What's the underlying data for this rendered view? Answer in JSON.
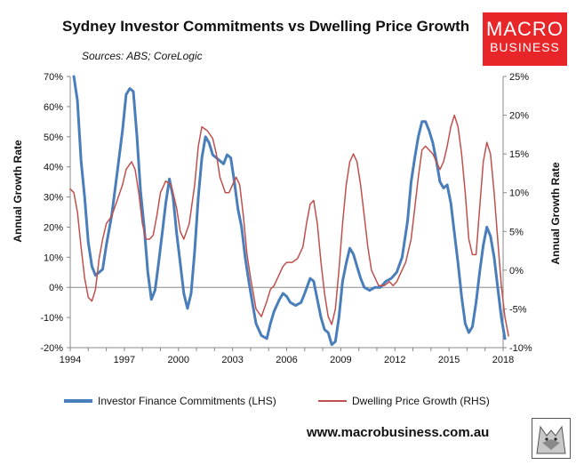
{
  "title": "Sydney Investor Commitments vs Dwelling Price Growth",
  "subtitle": "Sources: ABS; CoreLogic",
  "logo": {
    "line1": "MACRO",
    "line2": "BUSINESS",
    "color": "#e8262a"
  },
  "website": "www.macrobusiness.com.au",
  "chart_data": {
    "type": "line",
    "left_axis_title": "Annual Growth Rate",
    "right_axis_title": "Annual Growth Rate",
    "x_ticks": [
      "1994",
      "1997",
      "2000",
      "2003",
      "2006",
      "2009",
      "2012",
      "2015",
      "2018"
    ],
    "y_left_ticks": [
      "70%",
      "60%",
      "50%",
      "40%",
      "30%",
      "20%",
      "10%",
      "0%",
      "-10%",
      "-20%"
    ],
    "y_right_ticks": [
      "25%",
      "20%",
      "15%",
      "10%",
      "5%",
      "0%",
      "-5%",
      "-10%"
    ],
    "ylim_left": [
      -20,
      70
    ],
    "ylim_right": [
      -10,
      25
    ],
    "xlim": [
      1994,
      2018
    ],
    "grid": false,
    "legend_position": "bottom",
    "series": [
      {
        "name": "Investor Finance Commitments (LHS)",
        "axis": "left",
        "color": "#4a7ebb",
        "points": [
          [
            1994.2,
            70
          ],
          [
            1994.4,
            62
          ],
          [
            1994.6,
            42
          ],
          [
            1994.8,
            30
          ],
          [
            1995.0,
            15
          ],
          [
            1995.2,
            7
          ],
          [
            1995.4,
            4
          ],
          [
            1995.6,
            5
          ],
          [
            1995.8,
            6
          ],
          [
            1996.0,
            14
          ],
          [
            1996.3,
            24
          ],
          [
            1996.6,
            38
          ],
          [
            1996.9,
            52
          ],
          [
            1997.1,
            64
          ],
          [
            1997.3,
            66
          ],
          [
            1997.5,
            65
          ],
          [
            1997.7,
            50
          ],
          [
            1997.9,
            32
          ],
          [
            1998.1,
            20
          ],
          [
            1998.3,
            5
          ],
          [
            1998.5,
            -4
          ],
          [
            1998.7,
            -1
          ],
          [
            1998.9,
            8
          ],
          [
            1999.1,
            18
          ],
          [
            1999.3,
            28
          ],
          [
            1999.5,
            36
          ],
          [
            1999.7,
            30
          ],
          [
            1999.9,
            18
          ],
          [
            2000.1,
            8
          ],
          [
            2000.3,
            -2
          ],
          [
            2000.5,
            -7
          ],
          [
            2000.7,
            -2
          ],
          [
            2000.9,
            12
          ],
          [
            2001.1,
            30
          ],
          [
            2001.3,
            43
          ],
          [
            2001.5,
            50
          ],
          [
            2001.7,
            48
          ],
          [
            2001.9,
            44
          ],
          [
            2002.1,
            43
          ],
          [
            2002.3,
            42
          ],
          [
            2002.5,
            41
          ],
          [
            2002.7,
            44
          ],
          [
            2002.9,
            43
          ],
          [
            2003.1,
            35
          ],
          [
            2003.3,
            26
          ],
          [
            2003.5,
            20
          ],
          [
            2003.7,
            10
          ],
          [
            2003.9,
            2
          ],
          [
            2004.1,
            -5
          ],
          [
            2004.3,
            -12
          ],
          [
            2004.6,
            -16
          ],
          [
            2004.9,
            -17
          ],
          [
            2005.1,
            -12
          ],
          [
            2005.3,
            -8
          ],
          [
            2005.6,
            -4
          ],
          [
            2005.8,
            -2
          ],
          [
            2006.0,
            -3
          ],
          [
            2006.2,
            -5
          ],
          [
            2006.5,
            -6
          ],
          [
            2006.8,
            -5
          ],
          [
            2007.0,
            -2
          ],
          [
            2007.3,
            3
          ],
          [
            2007.5,
            2
          ],
          [
            2007.7,
            -4
          ],
          [
            2007.9,
            -10
          ],
          [
            2008.1,
            -14
          ],
          [
            2008.3,
            -15
          ],
          [
            2008.5,
            -19
          ],
          [
            2008.7,
            -18
          ],
          [
            2008.9,
            -10
          ],
          [
            2009.1,
            2
          ],
          [
            2009.3,
            8
          ],
          [
            2009.5,
            13
          ],
          [
            2009.7,
            11
          ],
          [
            2009.9,
            7
          ],
          [
            2010.1,
            3
          ],
          [
            2010.3,
            0
          ],
          [
            2010.6,
            -1
          ],
          [
            2010.9,
            0
          ],
          [
            2011.2,
            0
          ],
          [
            2011.5,
            2
          ],
          [
            2011.8,
            3
          ],
          [
            2012.1,
            5
          ],
          [
            2012.4,
            10
          ],
          [
            2012.7,
            22
          ],
          [
            2012.9,
            35
          ],
          [
            2013.1,
            43
          ],
          [
            2013.3,
            50
          ],
          [
            2013.5,
            55
          ],
          [
            2013.7,
            55
          ],
          [
            2013.9,
            52
          ],
          [
            2014.1,
            48
          ],
          [
            2014.3,
            42
          ],
          [
            2014.5,
            35
          ],
          [
            2014.7,
            33
          ],
          [
            2014.9,
            34
          ],
          [
            2015.1,
            28
          ],
          [
            2015.3,
            18
          ],
          [
            2015.5,
            8
          ],
          [
            2015.7,
            -3
          ],
          [
            2015.9,
            -12
          ],
          [
            2016.1,
            -15
          ],
          [
            2016.3,
            -13
          ],
          [
            2016.5,
            -5
          ],
          [
            2016.7,
            5
          ],
          [
            2016.9,
            14
          ],
          [
            2017.1,
            20
          ],
          [
            2017.3,
            17
          ],
          [
            2017.5,
            10
          ],
          [
            2017.7,
            0
          ],
          [
            2017.9,
            -10
          ],
          [
            2018.1,
            -17
          ]
        ]
      },
      {
        "name": "Dwelling Price Growth (RHS)",
        "axis": "right",
        "color": "#c0504d",
        "points": [
          [
            1994.0,
            10.5
          ],
          [
            1994.2,
            10
          ],
          [
            1994.4,
            7.5
          ],
          [
            1994.6,
            3
          ],
          [
            1994.8,
            -1
          ],
          [
            1995.0,
            -3.5
          ],
          [
            1995.2,
            -4
          ],
          [
            1995.4,
            -2.5
          ],
          [
            1995.6,
            1.5
          ],
          [
            1995.8,
            4
          ],
          [
            1996.0,
            6
          ],
          [
            1996.3,
            7
          ],
          [
            1996.6,
            9
          ],
          [
            1996.9,
            11
          ],
          [
            1997.1,
            13
          ],
          [
            1997.4,
            14
          ],
          [
            1997.6,
            13
          ],
          [
            1997.8,
            10
          ],
          [
            1998.0,
            6
          ],
          [
            1998.2,
            4
          ],
          [
            1998.4,
            4
          ],
          [
            1998.6,
            4.5
          ],
          [
            1998.8,
            7
          ],
          [
            1999.0,
            10
          ],
          [
            1999.3,
            11.5
          ],
          [
            1999.6,
            11
          ],
          [
            1999.9,
            8
          ],
          [
            2000.1,
            5
          ],
          [
            2000.3,
            4
          ],
          [
            2000.6,
            6
          ],
          [
            2000.9,
            11
          ],
          [
            2001.1,
            16
          ],
          [
            2001.3,
            18.5
          ],
          [
            2001.6,
            18
          ],
          [
            2001.9,
            17
          ],
          [
            2002.1,
            15
          ],
          [
            2002.3,
            12
          ],
          [
            2002.6,
            10
          ],
          [
            2002.8,
            10
          ],
          [
            2003.0,
            11
          ],
          [
            2003.2,
            12
          ],
          [
            2003.4,
            11
          ],
          [
            2003.6,
            7
          ],
          [
            2003.8,
            2
          ],
          [
            2004.0,
            -1
          ],
          [
            2004.3,
            -5
          ],
          [
            2004.6,
            -6
          ],
          [
            2004.9,
            -4
          ],
          [
            2005.1,
            -2.5
          ],
          [
            2005.3,
            -2
          ],
          [
            2005.6,
            -0.5
          ],
          [
            2005.8,
            0.5
          ],
          [
            2006.0,
            1
          ],
          [
            2006.3,
            1
          ],
          [
            2006.6,
            1.5
          ],
          [
            2006.9,
            3
          ],
          [
            2007.1,
            6
          ],
          [
            2007.3,
            8.5
          ],
          [
            2007.5,
            9
          ],
          [
            2007.7,
            6
          ],
          [
            2007.9,
            1
          ],
          [
            2008.1,
            -3
          ],
          [
            2008.3,
            -6
          ],
          [
            2008.5,
            -7
          ],
          [
            2008.7,
            -5
          ],
          [
            2008.9,
            0
          ],
          [
            2009.1,
            6
          ],
          [
            2009.3,
            11
          ],
          [
            2009.5,
            14
          ],
          [
            2009.7,
            15
          ],
          [
            2009.9,
            14
          ],
          [
            2010.1,
            11
          ],
          [
            2010.3,
            7
          ],
          [
            2010.5,
            3
          ],
          [
            2010.7,
            0
          ],
          [
            2010.9,
            -1
          ],
          [
            2011.1,
            -2
          ],
          [
            2011.4,
            -2
          ],
          [
            2011.7,
            -1.5
          ],
          [
            2011.9,
            -2
          ],
          [
            2012.1,
            -1.5
          ],
          [
            2012.3,
            -0.5
          ],
          [
            2012.6,
            1
          ],
          [
            2012.9,
            4
          ],
          [
            2013.1,
            8
          ],
          [
            2013.3,
            12
          ],
          [
            2013.5,
            15.5
          ],
          [
            2013.7,
            16
          ],
          [
            2013.9,
            15.5
          ],
          [
            2014.1,
            15
          ],
          [
            2014.3,
            14
          ],
          [
            2014.5,
            13
          ],
          [
            2014.7,
            14
          ],
          [
            2014.9,
            16
          ],
          [
            2015.1,
            18.5
          ],
          [
            2015.3,
            20
          ],
          [
            2015.5,
            18.5
          ],
          [
            2015.7,
            15
          ],
          [
            2015.9,
            10
          ],
          [
            2016.1,
            4
          ],
          [
            2016.3,
            2
          ],
          [
            2016.5,
            2
          ],
          [
            2016.7,
            8
          ],
          [
            2016.9,
            14
          ],
          [
            2017.1,
            16.5
          ],
          [
            2017.3,
            15
          ],
          [
            2017.5,
            10
          ],
          [
            2017.7,
            4
          ],
          [
            2017.9,
            -2
          ],
          [
            2018.1,
            -6
          ],
          [
            2018.3,
            -8.5
          ]
        ]
      }
    ]
  }
}
